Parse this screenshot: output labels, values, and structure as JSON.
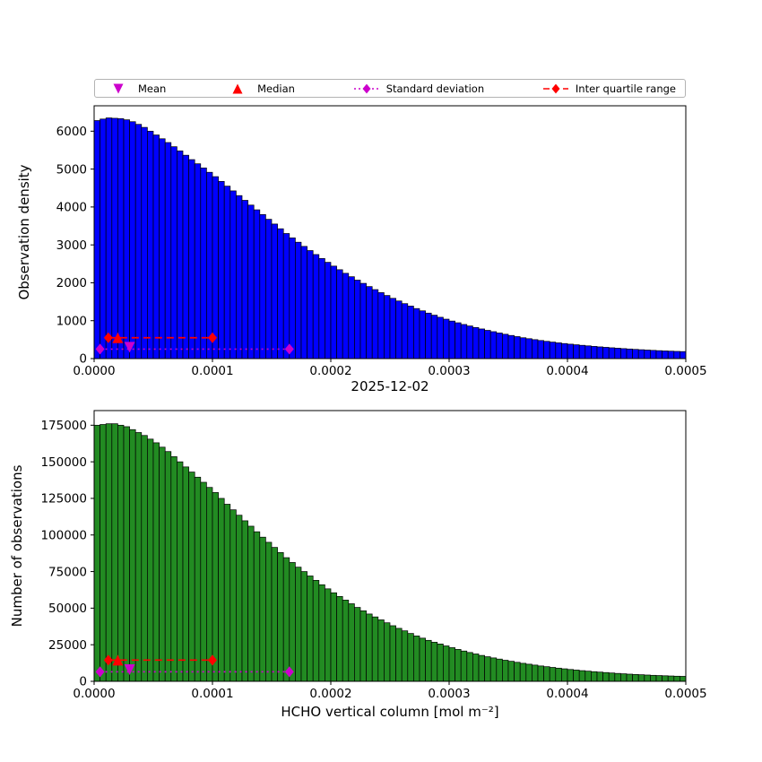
{
  "figure": {
    "background": "#ffffff"
  },
  "legend": {
    "items": [
      {
        "label": "Mean",
        "marker": "triangle-down",
        "color": "#cc00cc"
      },
      {
        "label": "Median",
        "marker": "triangle-up",
        "color": "#ff0000"
      },
      {
        "label": "Standard deviation",
        "marker": "diamond-dotted",
        "color": "#cc00cc"
      },
      {
        "label": "Inter quartile range",
        "marker": "diamond-dashed",
        "color": "#ff0000"
      }
    ]
  },
  "chart_data": [
    {
      "type": "bar",
      "id": "observation-density-histogram",
      "title": "",
      "ylabel": "Observation density",
      "xlabel": "2025-12-02",
      "bar_color": "#0000ff",
      "edge_color": "#000000",
      "bin_start": 0.0,
      "bin_end": 0.0005,
      "ylim": [
        0,
        6670
      ],
      "yticks": [
        0,
        1000,
        2000,
        3000,
        4000,
        5000,
        6000
      ],
      "xtick_values": [
        0.0,
        0.0001,
        0.0002,
        0.0003,
        0.0004,
        0.0005
      ],
      "xtick_labels": [
        "0.0000",
        "0.0001",
        "0.0002",
        "0.0003",
        "0.0004",
        "0.0005"
      ],
      "values": [
        6280,
        6320,
        6350,
        6340,
        6330,
        6300,
        6250,
        6180,
        6100,
        6000,
        5900,
        5800,
        5700,
        5590,
        5480,
        5365,
        5250,
        5140,
        5030,
        4915,
        4800,
        4675,
        4550,
        4425,
        4300,
        4175,
        4050,
        3925,
        3800,
        3675,
        3550,
        3425,
        3300,
        3185,
        3070,
        2960,
        2850,
        2745,
        2640,
        2540,
        2440,
        2345,
        2250,
        2160,
        2070,
        1985,
        1900,
        1820,
        1740,
        1665,
        1590,
        1520,
        1450,
        1385,
        1320,
        1260,
        1200,
        1145,
        1090,
        1040,
        990,
        945,
        900,
        860,
        820,
        782,
        745,
        710,
        675,
        642,
        610,
        580,
        550,
        525,
        500,
        477,
        455,
        435,
        415,
        397,
        380,
        365,
        350,
        336,
        322,
        309,
        297,
        285,
        274,
        263,
        253,
        243,
        234,
        225,
        217,
        209,
        202,
        196,
        190,
        185
      ],
      "markers": {
        "mean": {
          "x": 3e-05,
          "y": 300,
          "color": "#cc00cc"
        },
        "median": {
          "x": 2e-05,
          "y": 550,
          "color": "#ff0000"
        },
        "std": {
          "x0": 5e-06,
          "x1": 0.000165,
          "y": 250,
          "color": "#cc00cc",
          "style": "dotted"
        },
        "iqr": {
          "x0": 1.2e-05,
          "x1": 0.0001,
          "y": 550,
          "color": "#ff0000",
          "style": "dashed"
        }
      }
    },
    {
      "type": "bar",
      "id": "number-of-observations-histogram",
      "title": "",
      "ylabel": "Number of observations",
      "xlabel": "HCHO vertical column [mol m⁻²]",
      "bar_color": "#228B22",
      "edge_color": "#000000",
      "bin_start": 0.0,
      "bin_end": 0.0005,
      "ylim": [
        0,
        185000
      ],
      "yticks": [
        0,
        25000,
        50000,
        75000,
        100000,
        125000,
        150000,
        175000
      ],
      "xtick_values": [
        0.0,
        0.0001,
        0.0002,
        0.0003,
        0.0004,
        0.0005
      ],
      "xtick_labels": [
        "0.0000",
        "0.0001",
        "0.0002",
        "0.0003",
        "0.0004",
        "0.0005"
      ],
      "values": [
        175000,
        175500,
        176000,
        176000,
        175000,
        174000,
        172000,
        170000,
        168000,
        165500,
        163000,
        160000,
        157000,
        153500,
        150000,
        146500,
        143000,
        139500,
        136000,
        132500,
        129000,
        125000,
        121000,
        117200,
        113500,
        109700,
        106000,
        102200,
        98500,
        95000,
        91500,
        88000,
        84500,
        81200,
        78000,
        75000,
        72000,
        69000,
        66000,
        63200,
        60500,
        58000,
        55500,
        53000,
        50500,
        48200,
        46000,
        44000,
        42000,
        40000,
        38000,
        36200,
        34500,
        32700,
        31000,
        29500,
        28000,
        26700,
        25500,
        24200,
        23000,
        21800,
        20700,
        19700,
        18700,
        17700,
        16800,
        16000,
        15200,
        14400,
        13700,
        13000,
        12300,
        11700,
        11100,
        10500,
        10000,
        9500,
        9000,
        8550,
        8100,
        7700,
        7300,
        6950,
        6600,
        6300,
        6000,
        5700,
        5400,
        5150,
        4900,
        4700,
        4500,
        4300,
        4100,
        3950,
        3800,
        3650,
        3500,
        3400
      ],
      "markers": {
        "mean": {
          "x": 3e-05,
          "y": 8000,
          "color": "#cc00cc"
        },
        "median": {
          "x": 2e-05,
          "y": 14500,
          "color": "#ff0000"
        },
        "std": {
          "x0": 5e-06,
          "x1": 0.000165,
          "y": 6500,
          "color": "#cc00cc",
          "style": "dotted"
        },
        "iqr": {
          "x0": 1.2e-05,
          "x1": 0.0001,
          "y": 14500,
          "color": "#ff0000",
          "style": "dashed"
        }
      }
    }
  ]
}
